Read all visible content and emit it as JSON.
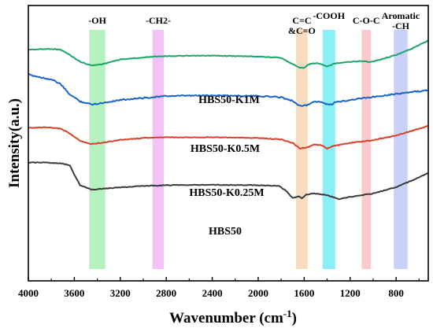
{
  "chart_data": {
    "type": "line",
    "xlabel": "Wavenumber (cm",
    "xlabel_sup": "-1",
    "xlabel_close": ")",
    "ylabel": "Intensity(a.u.)",
    "xlim": [
      4000,
      520
    ],
    "x_reversed": true,
    "x_ticks": [
      "4000",
      "3600",
      "3200",
      "2800",
      "2400",
      "2000",
      "1600",
      "1200",
      "800"
    ],
    "y_ticks_shown": false,
    "bands": [
      {
        "label_lines": [
          "-OH"
        ],
        "x_from": 3470,
        "x_to": 3330,
        "color": "#86ec9a"
      },
      {
        "label_lines": [
          "-CH2-"
        ],
        "x_from": 2920,
        "x_to": 2820,
        "color": "#ee9cf2"
      },
      {
        "label_lines": [
          "C=C",
          "&C=O"
        ],
        "x_from": 1670,
        "x_to": 1570,
        "color": "#f5c79a"
      },
      {
        "label_lines": [
          "-COOH"
        ],
        "x_from": 1440,
        "x_to": 1330,
        "color": "#45e3f0"
      },
      {
        "label_lines": [
          "C-O-C"
        ],
        "x_from": 1100,
        "x_to": 1020,
        "color": "#f7a9ad"
      },
      {
        "label_lines": [
          "Aromatic",
          "-CH"
        ],
        "x_from": 820,
        "x_to": 700,
        "color": "#a9b4f5"
      }
    ],
    "series": [
      {
        "name": "HBS50-K1M",
        "color": "#1aa66a",
        "points": [
          [
            4000,
            4.58
          ],
          [
            3800,
            4.62
          ],
          [
            3720,
            4.58
          ],
          [
            3650,
            4.34
          ],
          [
            3550,
            3.94
          ],
          [
            3450,
            3.74
          ],
          [
            3350,
            3.82
          ],
          [
            3200,
            4.06
          ],
          [
            3000,
            4.16
          ],
          [
            2900,
            4.22
          ],
          [
            2800,
            4.24
          ],
          [
            2400,
            4.26
          ],
          [
            2000,
            4.22
          ],
          [
            1800,
            4.14
          ],
          [
            1750,
            3.98
          ],
          [
            1700,
            3.82
          ],
          [
            1640,
            3.62
          ],
          [
            1600,
            3.62
          ],
          [
            1550,
            3.84
          ],
          [
            1480,
            3.86
          ],
          [
            1400,
            3.68
          ],
          [
            1340,
            3.84
          ],
          [
            1250,
            3.9
          ],
          [
            1100,
            3.98
          ],
          [
            1020,
            3.92
          ],
          [
            900,
            4.12
          ],
          [
            800,
            4.3
          ],
          [
            700,
            4.54
          ],
          [
            600,
            4.82
          ],
          [
            520,
            5.06
          ]
        ]
      },
      {
        "name": "HBS50-K0.5M",
        "color": "#1a63c6",
        "points": [
          [
            4000,
            3.26
          ],
          [
            3900,
            3.12
          ],
          [
            3800,
            3.0
          ],
          [
            3720,
            2.76
          ],
          [
            3650,
            2.26
          ],
          [
            3550,
            1.84
          ],
          [
            3450,
            1.68
          ],
          [
            3350,
            1.76
          ],
          [
            3200,
            1.92
          ],
          [
            3000,
            2.02
          ],
          [
            2800,
            2.12
          ],
          [
            2400,
            2.16
          ],
          [
            2000,
            2.12
          ],
          [
            1800,
            2.06
          ],
          [
            1700,
            1.86
          ],
          [
            1640,
            1.62
          ],
          [
            1580,
            1.62
          ],
          [
            1520,
            1.82
          ],
          [
            1450,
            1.8
          ],
          [
            1380,
            1.64
          ],
          [
            1320,
            1.8
          ],
          [
            1200,
            1.92
          ],
          [
            1000,
            2.08
          ],
          [
            800,
            2.24
          ],
          [
            650,
            2.34
          ],
          [
            520,
            2.42
          ]
        ]
      },
      {
        "name": "HBS50-K0.25M",
        "color": "#d9412b",
        "points": [
          [
            4000,
            0.44
          ],
          [
            3850,
            0.46
          ],
          [
            3720,
            0.4
          ],
          [
            3650,
            0.18
          ],
          [
            3550,
            -0.26
          ],
          [
            3450,
            -0.42
          ],
          [
            3350,
            -0.34
          ],
          [
            3200,
            -0.2
          ],
          [
            3000,
            -0.1
          ],
          [
            2800,
            -0.06
          ],
          [
            2400,
            -0.06
          ],
          [
            2000,
            -0.1
          ],
          [
            1800,
            -0.18
          ],
          [
            1700,
            -0.36
          ],
          [
            1640,
            -0.64
          ],
          [
            1580,
            -0.62
          ],
          [
            1520,
            -0.46
          ],
          [
            1450,
            -0.48
          ],
          [
            1400,
            -0.66
          ],
          [
            1340,
            -0.52
          ],
          [
            1200,
            -0.36
          ],
          [
            1000,
            -0.22
          ],
          [
            800,
            0.04
          ],
          [
            650,
            0.3
          ],
          [
            520,
            0.54
          ]
        ]
      },
      {
        "name": "HBS50",
        "color": "#3c3c3c",
        "points": [
          [
            4000,
            -1.4
          ],
          [
            3850,
            -1.4
          ],
          [
            3720,
            -1.44
          ],
          [
            3640,
            -1.54
          ],
          [
            3600,
            -2.04
          ],
          [
            3550,
            -2.6
          ],
          [
            3450,
            -2.84
          ],
          [
            3350,
            -2.78
          ],
          [
            3200,
            -2.72
          ],
          [
            3000,
            -2.64
          ],
          [
            2800,
            -2.6
          ],
          [
            2400,
            -2.58
          ],
          [
            2000,
            -2.6
          ],
          [
            1820,
            -2.64
          ],
          [
            1760,
            -2.88
          ],
          [
            1700,
            -3.28
          ],
          [
            1650,
            -3.18
          ],
          [
            1620,
            -3.28
          ],
          [
            1580,
            -3.1
          ],
          [
            1520,
            -3.04
          ],
          [
            1400,
            -3.12
          ],
          [
            1300,
            -3.34
          ],
          [
            1200,
            -3.22
          ],
          [
            1000,
            -3.04
          ],
          [
            800,
            -2.7
          ],
          [
            650,
            -2.32
          ],
          [
            520,
            -1.96
          ]
        ]
      }
    ]
  }
}
